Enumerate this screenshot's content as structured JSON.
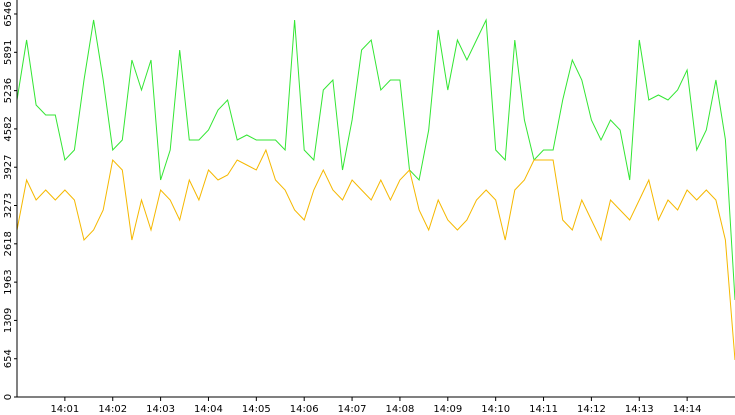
{
  "chart_data": {
    "type": "line",
    "x": [
      0,
      0.2,
      0.4,
      0.6,
      0.8,
      1,
      1.2,
      1.4,
      1.6,
      1.8,
      2,
      2.2,
      2.4,
      2.6,
      2.8,
      3,
      3.2,
      3.4,
      3.6,
      3.8,
      4,
      4.2,
      4.4,
      4.6,
      4.8,
      5,
      5.2,
      5.4,
      5.6,
      5.8,
      6,
      6.2,
      6.4,
      6.6,
      6.8,
      7,
      7.2,
      7.4,
      7.6,
      7.8,
      8,
      8.2,
      8.4,
      8.6,
      8.8,
      9,
      9.2,
      9.4,
      9.6,
      9.8,
      10,
      10.2,
      10.4,
      10.6,
      10.8,
      11,
      11.2,
      11.4,
      11.6,
      11.8,
      12,
      12.2,
      12.4,
      12.6,
      12.8,
      13,
      13.2,
      13.4,
      13.6,
      13.8,
      14,
      14.2,
      14.4,
      14.6,
      14.8,
      15
    ],
    "series": [
      {
        "color": "#33e633",
        "values": [
          5076,
          6101,
          4990,
          4819,
          4819,
          4050,
          4221,
          5418,
          6443,
          5418,
          4221,
          4392,
          5759,
          5247,
          5759,
          3709,
          4221,
          5930,
          4392,
          4392,
          4563,
          4905,
          5076,
          4392,
          4477,
          4392,
          4392,
          4392,
          4221,
          6443,
          4221,
          4050,
          5247,
          5418,
          3880,
          4734,
          5930,
          6101,
          5247,
          5418,
          5418,
          3880,
          3709,
          4563,
          6272,
          5247,
          6101,
          5759,
          6101,
          6443,
          4221,
          4050,
          6101,
          4734,
          4050,
          4221,
          4221,
          5076,
          5759,
          5418,
          4734,
          4392,
          4734,
          4563,
          3709,
          6101,
          5076,
          5161,
          5076,
          5247,
          5588,
          4221,
          4563,
          5418,
          4400,
          1658
        ]
      },
      {
        "color": "#f5b800",
        "values": [
          2854,
          3709,
          3367,
          3538,
          3367,
          3538,
          3367,
          2683,
          2854,
          3196,
          4050,
          3880,
          2683,
          3367,
          2854,
          3538,
          3367,
          3025,
          3709,
          3367,
          3880,
          3709,
          3794,
          4050,
          3965,
          3880,
          4221,
          3709,
          3538,
          3196,
          3025,
          3538,
          3880,
          3538,
          3367,
          3709,
          3538,
          3367,
          3709,
          3367,
          3709,
          3880,
          3196,
          2854,
          3367,
          3025,
          2854,
          3025,
          3367,
          3538,
          3367,
          2683,
          3538,
          3709,
          4050,
          4050,
          4050,
          3025,
          2854,
          3367,
          3025,
          2683,
          3367,
          3196,
          3025,
          3367,
          3709,
          3025,
          3367,
          3196,
          3538,
          3367,
          3538,
          3367,
          2683,
          632
        ]
      }
    ],
    "xlim": [
      0,
      15
    ],
    "xticks": [
      {
        "value": 1,
        "label": "14:01"
      },
      {
        "value": 2,
        "label": "14:02"
      },
      {
        "value": 3,
        "label": "14:03"
      },
      {
        "value": 4,
        "label": "14:04"
      },
      {
        "value": 5,
        "label": "14:05"
      },
      {
        "value": 6,
        "label": "14:06"
      },
      {
        "value": 7,
        "label": "14:07"
      },
      {
        "value": 8,
        "label": "14:08"
      },
      {
        "value": 9,
        "label": "14:09"
      },
      {
        "value": 10,
        "label": "14:10"
      },
      {
        "value": 11,
        "label": "14:11"
      },
      {
        "value": 12,
        "label": "14:12"
      },
      {
        "value": 13,
        "label": "14:13"
      },
      {
        "value": 14,
        "label": "14:14"
      }
    ],
    "ylim": [
      0,
      6785
    ],
    "yticks": [
      0,
      654,
      1309,
      1963,
      2618,
      3273,
      3927,
      4582,
      5236,
      5891,
      6546
    ]
  }
}
